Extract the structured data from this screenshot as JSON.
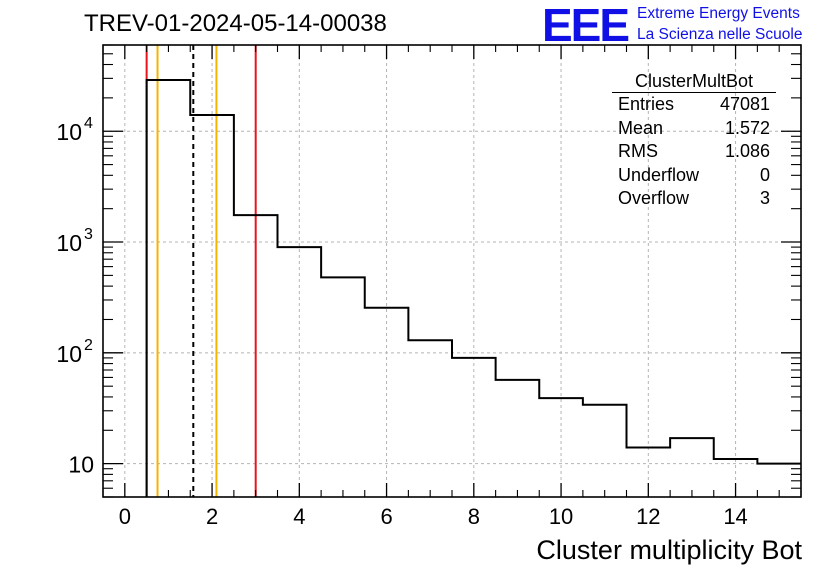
{
  "run_title": "TREV-01-2024-05-14-00038",
  "logo": {
    "mark": "EEE",
    "line1": "Extreme Energy Events",
    "line2": "La Scienza nelle Scuole"
  },
  "stats": {
    "title": "ClusterMultBot",
    "rows": [
      {
        "label": "Entries",
        "value": "47081"
      },
      {
        "label": "Mean",
        "value": "1.572"
      },
      {
        "label": "RMS",
        "value": "1.086"
      },
      {
        "label": "Underflow",
        "value": "0"
      },
      {
        "label": "Overflow",
        "value": "3"
      }
    ]
  },
  "colors": {
    "histogram": "#000000",
    "red_line": "#e8141c",
    "orange_line": "#f5b400",
    "mean_line": "#000000",
    "grid": "#b4b4b4"
  },
  "chart_data": {
    "type": "histogram",
    "title": "TREV-01-2024-05-14-00038",
    "xlabel": "Cluster multiplicity Bot",
    "ylabel": "",
    "yscale": "log",
    "xlim": [
      -0.5,
      15.5
    ],
    "ylim": [
      5,
      60000
    ],
    "grid": true,
    "bin_edges": [
      0.5,
      1.5,
      2.5,
      3.5,
      4.5,
      5.5,
      6.5,
      7.5,
      8.5,
      9.5,
      10.5,
      11.5,
      12.5,
      13.5,
      14.5,
      15.5
    ],
    "counts": [
      29000,
      14000,
      1750,
      900,
      480,
      255,
      130,
      90,
      57,
      39,
      34,
      14,
      17,
      11,
      10
    ],
    "x_ticks": [
      0,
      2,
      4,
      6,
      8,
      10,
      12,
      14
    ],
    "x_tick_labels": [
      "0",
      "2",
      "4",
      "6",
      "8",
      "10",
      "12",
      "14"
    ],
    "y_ticks": [
      {
        "value": 10,
        "base": "10",
        "exp": ""
      },
      {
        "value": 100,
        "base": "10",
        "exp": "2"
      },
      {
        "value": 1000,
        "base": "10",
        "exp": "3"
      },
      {
        "value": 10000,
        "base": "10",
        "exp": "4"
      }
    ],
    "vertical_lines": [
      {
        "x": 0.5,
        "color": "red",
        "style": "solid"
      },
      {
        "x": 0.75,
        "color": "orange",
        "style": "solid"
      },
      {
        "x": 1.57,
        "color": "black",
        "style": "dashed"
      },
      {
        "x": 2.1,
        "color": "orange",
        "style": "solid"
      },
      {
        "x": 3.0,
        "color": "red",
        "style": "solid"
      }
    ]
  }
}
